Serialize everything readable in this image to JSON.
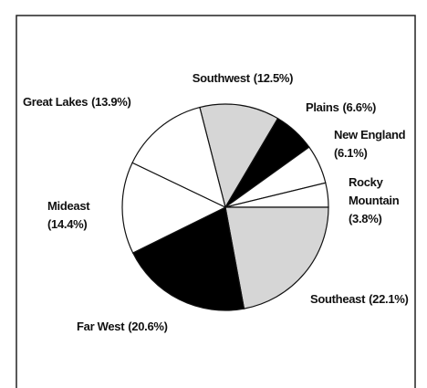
{
  "chart_data": {
    "type": "pie",
    "categories": [
      "Southwest",
      "Plains",
      "New England",
      "Rocky Mountain",
      "Southeast",
      "Far West",
      "Mideast",
      "Great Lakes"
    ],
    "values": [
      12.5,
      6.6,
      6.1,
      3.8,
      22.1,
      20.6,
      14.4,
      13.9
    ],
    "value_labels": [
      "(12.5%)",
      "(6.6%)",
      "(6.1%)",
      "(3.8%)",
      "(22.1%)",
      "(20.6%)",
      "(14.4%)",
      "(13.9%)"
    ],
    "colors": [
      "#d6d6d6",
      "#000000",
      "#ffffff",
      "#ffffff",
      "#d6d6d6",
      "#000000",
      "#ffffff",
      "#ffffff"
    ]
  }
}
